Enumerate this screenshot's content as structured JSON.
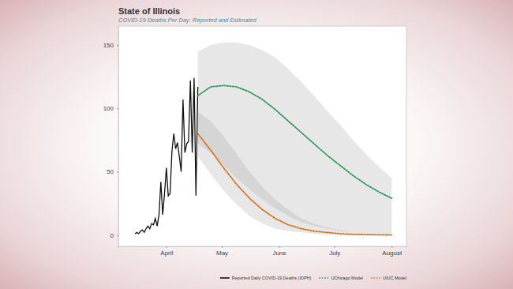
{
  "chart_data": {
    "type": "line",
    "title": "State of Illinois",
    "subtitle": "COVID-19 Deaths Per Day: Reported and Estimated",
    "xlim": [
      66,
      222
    ],
    "xticks": [
      {
        "value": 92,
        "label": "April"
      },
      {
        "value": 122,
        "label": "May"
      },
      {
        "value": 153,
        "label": "June"
      },
      {
        "value": 183,
        "label": "July"
      },
      {
        "value": 214,
        "label": "August"
      }
    ],
    "ylim": [
      -9,
      165
    ],
    "yticks": [
      0,
      50,
      100,
      150
    ],
    "grid": false,
    "legend": "bottom-right",
    "series": [
      {
        "name": "Reported Daily COVID-19 Deaths (IDPH)",
        "color": "#111111",
        "line_style": "solid",
        "x": [
          75,
          76,
          77,
          78,
          79,
          80,
          81,
          82,
          83,
          84,
          85,
          86,
          87,
          88,
          89,
          90,
          91,
          92,
          93,
          94,
          95,
          96,
          97,
          98,
          99,
          100,
          101,
          102,
          103,
          104,
          105,
          106,
          107,
          108,
          109
        ],
        "values": [
          1,
          2,
          1,
          3,
          4,
          2,
          5,
          7,
          5,
          9,
          8,
          13,
          7,
          16,
          42,
          16,
          33,
          53,
          31,
          33,
          66,
          80,
          68,
          73,
          62,
          50,
          107,
          65,
          72,
          74,
          122,
          65,
          124,
          31,
          117
        ]
      },
      {
        "name": "UChicago Model",
        "color": "#2e9a5a",
        "line_style": "dotted",
        "x": [
          109,
          116,
          123,
          130,
          137,
          144,
          151,
          158,
          165,
          172,
          179,
          186,
          193,
          200,
          207,
          214
        ],
        "values": [
          110,
          117,
          118,
          117,
          113,
          107,
          99,
          90,
          81,
          72,
          63,
          55,
          47,
          40,
          34,
          29
        ],
        "lower": [
          72,
          65,
          55,
          45,
          36,
          28,
          21,
          15,
          10,
          7,
          5,
          3,
          2,
          1,
          1,
          0
        ],
        "upper": [
          145,
          150,
          152,
          152,
          150,
          146,
          140,
          131,
          121,
          110,
          98,
          87,
          75,
          64,
          54,
          45
        ]
      },
      {
        "name": "UIUC Model",
        "color": "#d9701c",
        "line_style": "dotted",
        "x": [
          109,
          116,
          123,
          130,
          137,
          144,
          151,
          158,
          165,
          172,
          179,
          186,
          193,
          200,
          207,
          214
        ],
        "values": [
          80,
          67,
          53,
          40,
          29,
          20,
          13,
          8,
          5,
          3,
          2,
          1,
          0.5,
          0.3,
          0.1,
          0
        ],
        "lower": [
          62,
          48,
          35,
          24,
          15,
          9,
          5,
          3,
          2,
          1,
          0,
          0,
          0,
          0,
          0,
          0
        ],
        "upper": [
          97,
          90,
          78,
          64,
          50,
          38,
          28,
          20,
          13,
          9,
          6,
          4,
          2,
          1,
          1,
          0
        ]
      }
    ]
  }
}
